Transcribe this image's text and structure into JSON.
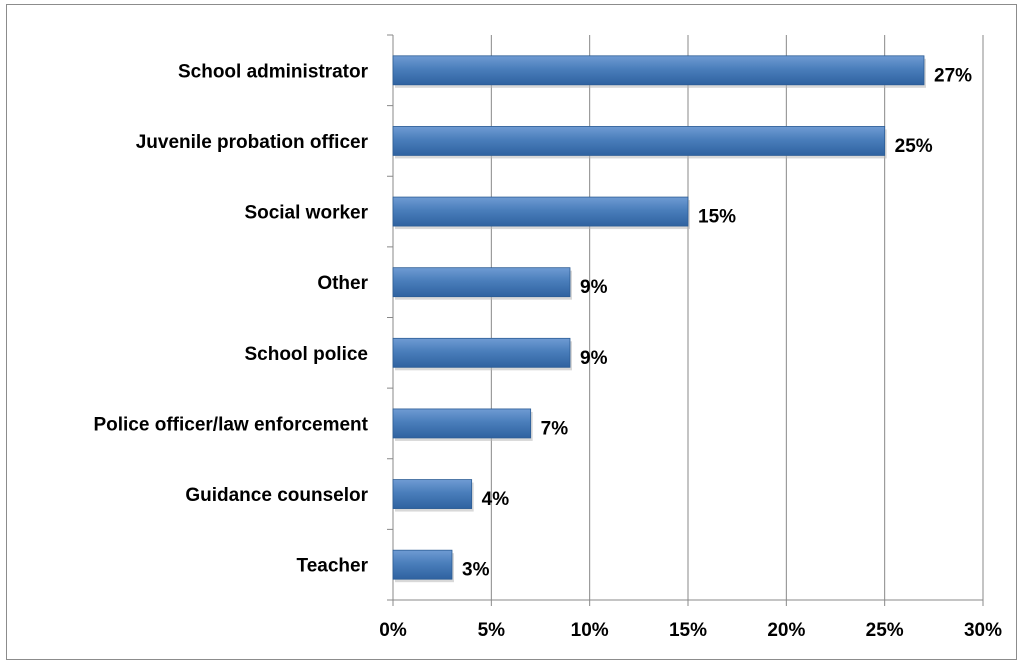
{
  "chart_data": {
    "type": "bar",
    "orientation": "horizontal",
    "categories": [
      "School administrator",
      "Juvenile probation officer",
      "Social worker",
      "Other",
      "School police",
      "Police officer/law enforcement",
      "Guidance counselor",
      "Teacher"
    ],
    "values": [
      27,
      25,
      15,
      9,
      9,
      7,
      4,
      3
    ],
    "value_labels": [
      "27%",
      "25%",
      "15%",
      "9%",
      "9%",
      "7%",
      "4%",
      "3%"
    ],
    "xlim": [
      0,
      30
    ],
    "x_ticks": [
      0,
      5,
      10,
      15,
      20,
      25,
      30
    ],
    "x_tick_labels": [
      "0%",
      "5%",
      "10%",
      "15%",
      "20%",
      "25%",
      "30%"
    ],
    "grid": "vertical",
    "legend": "none",
    "colors": {
      "bar": "#4a7ebb",
      "bar_dark": "#2c5c94",
      "grid": "#888888"
    }
  }
}
